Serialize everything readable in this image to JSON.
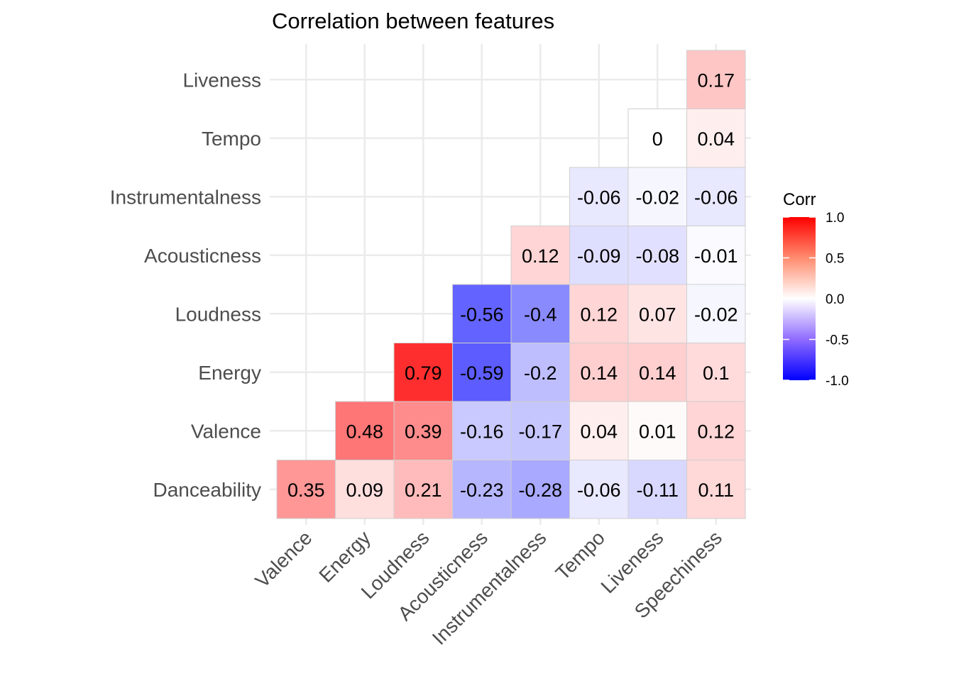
{
  "chart_data": {
    "type": "heatmap",
    "title": "Correlation between features",
    "x_categories": [
      "Valence",
      "Energy",
      "Loudness",
      "Acousticness",
      "Instrumentalness",
      "Tempo",
      "Liveness",
      "Speechiness"
    ],
    "y_categories": [
      "Danceability",
      "Valence",
      "Energy",
      "Loudness",
      "Acousticness",
      "Instrumentalness",
      "Tempo",
      "Liveness"
    ],
    "cells": [
      {
        "x": "Valence",
        "y": "Danceability",
        "value": 0.35,
        "label": "0.35"
      },
      {
        "x": "Energy",
        "y": "Danceability",
        "value": 0.09,
        "label": "0.09"
      },
      {
        "x": "Loudness",
        "y": "Danceability",
        "value": 0.21,
        "label": "0.21"
      },
      {
        "x": "Acousticness",
        "y": "Danceability",
        "value": -0.23,
        "label": "-0.23"
      },
      {
        "x": "Instrumentalness",
        "y": "Danceability",
        "value": -0.28,
        "label": "-0.28"
      },
      {
        "x": "Tempo",
        "y": "Danceability",
        "value": -0.06,
        "label": "-0.06"
      },
      {
        "x": "Liveness",
        "y": "Danceability",
        "value": -0.11,
        "label": "-0.11"
      },
      {
        "x": "Speechiness",
        "y": "Danceability",
        "value": 0.11,
        "label": "0.11"
      },
      {
        "x": "Energy",
        "y": "Valence",
        "value": 0.48,
        "label": "0.48"
      },
      {
        "x": "Loudness",
        "y": "Valence",
        "value": 0.39,
        "label": "0.39"
      },
      {
        "x": "Acousticness",
        "y": "Valence",
        "value": -0.16,
        "label": "-0.16"
      },
      {
        "x": "Instrumentalness",
        "y": "Valence",
        "value": -0.17,
        "label": "-0.17"
      },
      {
        "x": "Tempo",
        "y": "Valence",
        "value": 0.04,
        "label": "0.04"
      },
      {
        "x": "Liveness",
        "y": "Valence",
        "value": 0.01,
        "label": "0.01"
      },
      {
        "x": "Speechiness",
        "y": "Valence",
        "value": 0.12,
        "label": "0.12"
      },
      {
        "x": "Loudness",
        "y": "Energy",
        "value": 0.79,
        "label": "0.79"
      },
      {
        "x": "Acousticness",
        "y": "Energy",
        "value": -0.59,
        "label": "-0.59"
      },
      {
        "x": "Instrumentalness",
        "y": "Energy",
        "value": -0.2,
        "label": "-0.2"
      },
      {
        "x": "Tempo",
        "y": "Energy",
        "value": 0.14,
        "label": "0.14"
      },
      {
        "x": "Liveness",
        "y": "Energy",
        "value": 0.14,
        "label": "0.14"
      },
      {
        "x": "Speechiness",
        "y": "Energy",
        "value": 0.1,
        "label": "0.1"
      },
      {
        "x": "Acousticness",
        "y": "Loudness",
        "value": -0.56,
        "label": "-0.56"
      },
      {
        "x": "Instrumentalness",
        "y": "Loudness",
        "value": -0.4,
        "label": "-0.4"
      },
      {
        "x": "Tempo",
        "y": "Loudness",
        "value": 0.12,
        "label": "0.12"
      },
      {
        "x": "Liveness",
        "y": "Loudness",
        "value": 0.07,
        "label": "0.07"
      },
      {
        "x": "Speechiness",
        "y": "Loudness",
        "value": -0.02,
        "label": "-0.02"
      },
      {
        "x": "Instrumentalness",
        "y": "Acousticness",
        "value": 0.12,
        "label": "0.12"
      },
      {
        "x": "Tempo",
        "y": "Acousticness",
        "value": -0.09,
        "label": "-0.09"
      },
      {
        "x": "Liveness",
        "y": "Acousticness",
        "value": -0.08,
        "label": "-0.08"
      },
      {
        "x": "Speechiness",
        "y": "Acousticness",
        "value": -0.01,
        "label": "-0.01"
      },
      {
        "x": "Tempo",
        "y": "Instrumentalness",
        "value": -0.06,
        "label": "-0.06"
      },
      {
        "x": "Liveness",
        "y": "Instrumentalness",
        "value": -0.02,
        "label": "-0.02"
      },
      {
        "x": "Speechiness",
        "y": "Instrumentalness",
        "value": -0.06,
        "label": "-0.06"
      },
      {
        "x": "Liveness",
        "y": "Tempo",
        "value": 0,
        "label": "0"
      },
      {
        "x": "Speechiness",
        "y": "Tempo",
        "value": 0.04,
        "label": "0.04"
      },
      {
        "x": "Speechiness",
        "y": "Liveness",
        "value": 0.17,
        "label": "0.17"
      }
    ],
    "legend": {
      "title": "Corr",
      "placement": "right",
      "range": [
        -1,
        1
      ],
      "ticks": [
        {
          "value": 1,
          "label": "1.0"
        },
        {
          "value": 0.5,
          "label": "0.5"
        },
        {
          "value": 0,
          "label": "0.0"
        },
        {
          "value": -0.5,
          "label": "-0.5"
        },
        {
          "value": -1,
          "label": "-1.0"
        }
      ],
      "colors": {
        "low": "#0000ff",
        "mid": "#ffffff",
        "high": "#ff0000"
      }
    },
    "grid": true
  }
}
